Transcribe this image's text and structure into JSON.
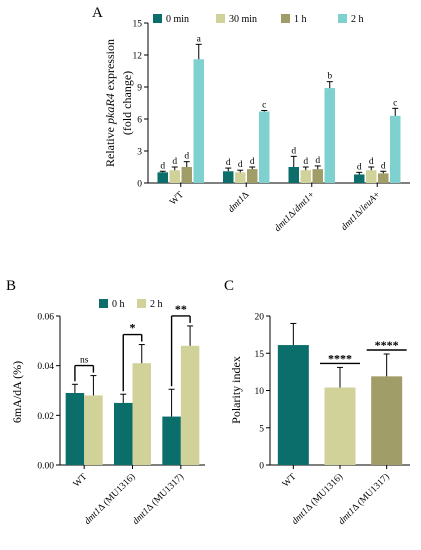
{
  "colors": {
    "teal_dark": "#0b6e6b",
    "khaki_light": "#d1d19a",
    "olive": "#a09d68",
    "cyan_light": "#7fd1d0",
    "axis": "#000000"
  },
  "chart_data": [
    {
      "panel": "A",
      "type": "bar",
      "ylabel_prefix": "Relative ",
      "ylabel_gene": "pkaR4",
      "ylabel_suffix": " expression",
      "ylabel_line2": "(fold change)",
      "ylim": [
        0,
        15
      ],
      "yticks": [
        "0",
        "3",
        "6",
        "9",
        "12",
        "15"
      ],
      "legend_position": "top",
      "categories": [
        "WT",
        "dmt1Δ",
        "dmt1Δ/dmt1+",
        "dmt1Δ/leuA+"
      ],
      "series": [
        {
          "name": "0 min",
          "color": "#0b6e6b",
          "values": [
            1.0,
            1.1,
            1.5,
            0.8
          ],
          "errors": [
            0.1,
            0.3,
            1.0,
            0.2
          ]
        },
        {
          "name": "30 min",
          "color": "#d1d19a",
          "values": [
            1.2,
            1.0,
            1.2,
            1.2
          ],
          "errors": [
            0.3,
            0.2,
            0.3,
            0.3
          ]
        },
        {
          "name": "1 h",
          "color": "#a09d68",
          "values": [
            1.5,
            1.3,
            1.3,
            0.9
          ],
          "errors": [
            0.5,
            0.2,
            0.3,
            0.2
          ]
        },
        {
          "name": "2 h",
          "color": "#7fd1d0",
          "values": [
            11.6,
            6.7,
            8.9,
            6.3
          ],
          "errors": [
            1.4,
            0.1,
            0.6,
            0.7
          ]
        }
      ],
      "letters": [
        [
          "d",
          "d",
          "d",
          "a"
        ],
        [
          "d",
          "d",
          "d",
          "c"
        ],
        [
          "d",
          "d",
          "d",
          "b"
        ],
        [
          "d",
          "d",
          "d",
          "c"
        ]
      ]
    },
    {
      "panel": "B",
      "type": "bar",
      "ylabel": "6mA/dA (%)",
      "ylim": [
        0,
        0.06
      ],
      "yticks": [
        "0.00",
        "0.02",
        "0.04",
        "0.06"
      ],
      "legend_position": "top",
      "categories": [
        "WT",
        "dmt1Δ (MU1316)",
        "dmt1Δ (MU1317)"
      ],
      "series": [
        {
          "name": "0 h",
          "color": "#0b6e6b",
          "values": [
            0.029,
            0.025,
            0.0195
          ],
          "errors": [
            0.0035,
            0.0035,
            0.011
          ]
        },
        {
          "name": "2 h",
          "color": "#d1d19a",
          "values": [
            0.028,
            0.041,
            0.048
          ],
          "errors": [
            0.008,
            0.0075,
            0.008
          ]
        }
      ],
      "significance": [
        "ns",
        "*",
        "**"
      ]
    },
    {
      "panel": "C",
      "type": "bar",
      "ylabel": "Polarity index",
      "ylim": [
        0,
        20
      ],
      "yticks": [
        "0",
        "5",
        "10",
        "15",
        "20"
      ],
      "categories": [
        "WT",
        "dmt1Δ (MU1316)",
        "dmt1Δ (MU1317)"
      ],
      "colors": [
        "#0b6e6b",
        "#d1d19a",
        "#a09d68"
      ],
      "values": [
        16.1,
        10.4,
        11.9
      ],
      "errors": [
        2.9,
        2.7,
        3.0
      ],
      "significance": [
        "",
        "****",
        "****"
      ]
    }
  ]
}
